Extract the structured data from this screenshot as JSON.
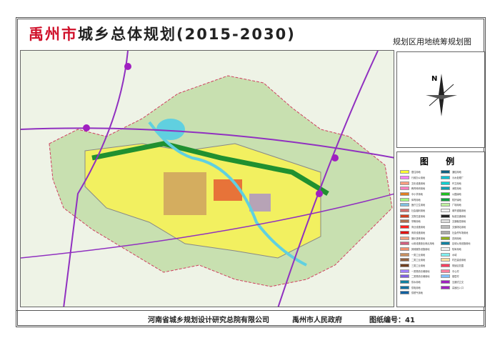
{
  "header": {
    "title_red": "禹州市",
    "title_black": "城乡总体规划(2015-2030)",
    "subtitle": "规划区用地统筹规划图"
  },
  "compass": {
    "label": "N"
  },
  "legend": {
    "title": "图 例",
    "left": [
      {
        "label": "居住用地",
        "color": "#ffff33"
      },
      {
        "label": "行政办公用地",
        "color": "#ff80ff"
      },
      {
        "label": "文化设施用地",
        "color": "#ff9f80"
      },
      {
        "label": "教育科研用地",
        "color": "#ff80c0"
      },
      {
        "label": "中小学用地",
        "color": "#e08020"
      },
      {
        "label": "体育用地",
        "color": "#a0ff80"
      },
      {
        "label": "医疗卫生用地",
        "color": "#80c0e0"
      },
      {
        "label": "社会福利用地",
        "color": "#d07070"
      },
      {
        "label": "文物古迹用地",
        "color": "#d04020"
      },
      {
        "label": "宗教用地",
        "color": "#b07050"
      },
      {
        "label": "商业设施用地",
        "color": "#ff2020"
      },
      {
        "label": "商务设施用地",
        "color": "#e01010"
      },
      {
        "label": "娱乐康体用地",
        "color": "#f0a080"
      },
      {
        "label": "公用设施营业网点用地",
        "color": "#d06080"
      },
      {
        "label": "其他服务设施用地",
        "color": "#f09070"
      },
      {
        "label": "一类工业用地",
        "color": "#c89060"
      },
      {
        "label": "二类工业用地",
        "color": "#906040"
      },
      {
        "label": "三类工业用地",
        "color": "#704020"
      },
      {
        "label": "一类物流仓储用地",
        "color": "#a080ff"
      },
      {
        "label": "二类物流仓储用地",
        "color": "#8060e0"
      },
      {
        "label": "供水用地",
        "color": "#1080a0"
      },
      {
        "label": "供电用地",
        "color": "#1070a0"
      },
      {
        "label": "供燃气用地",
        "color": "#1060a0"
      }
    ],
    "right": [
      {
        "label": "通信用地",
        "color": "#106080"
      },
      {
        "label": "污水处理厂",
        "color": "#10c0d0"
      },
      {
        "label": "环卫用地",
        "color": "#10d0d0"
      },
      {
        "label": "消防用地",
        "color": "#10a0b0"
      },
      {
        "label": "公园绿地",
        "color": "#20c020"
      },
      {
        "label": "防护绿地",
        "color": "#10a040"
      },
      {
        "label": "广场用地",
        "color": "#c0f0a0"
      },
      {
        "label": "城市道路用地",
        "color": "#eeeeee"
      },
      {
        "label": "轨道交通用地",
        "color": "#222222"
      },
      {
        "label": "交通枢纽用地",
        "color": "#dddddd"
      },
      {
        "label": "交通场站用地",
        "color": "#bbbbbb"
      },
      {
        "label": "社会停车场用地",
        "color": "#aaaaaa"
      },
      {
        "label": "农林用地",
        "color": "#90b020"
      },
      {
        "label": "区域公用设施用地",
        "color": "#1080a0"
      },
      {
        "label": "陆军用地",
        "color": "#f0f0f0"
      },
      {
        "label": "水域",
        "color": "#80f0f0"
      },
      {
        "label": "村庄建设用地",
        "color": "#ffe0a0"
      },
      {
        "label": "规划区范围",
        "color": "#ff4060"
      },
      {
        "label": "中心村",
        "color": "#ff80a0"
      },
      {
        "label": "基层村",
        "color": "#80c0ff"
      },
      {
        "label": "互通式立交",
        "color": "#a020c0"
      },
      {
        "label": "高速出入口",
        "color": "#a020c0"
      }
    ]
  },
  "footer": {
    "institute": "河南省城乡规划设计研究总院有限公司",
    "government": "禹州市人民政府",
    "drawing_no": "图纸编号：41"
  }
}
